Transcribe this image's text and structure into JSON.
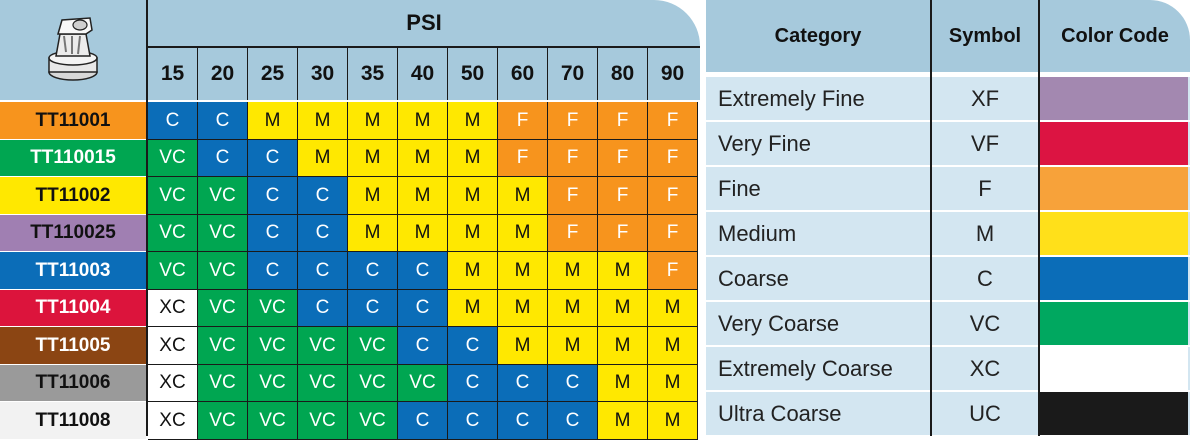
{
  "psi_title": "PSI",
  "psi_values": [
    "15",
    "20",
    "25",
    "30",
    "35",
    "40",
    "50",
    "60",
    "70",
    "80",
    "90"
  ],
  "chart_data": {
    "type": "table",
    "columns": [
      "15",
      "20",
      "25",
      "30",
      "35",
      "40",
      "50",
      "60",
      "70",
      "80",
      "90"
    ],
    "rows": [
      {
        "nozzle": "TT11001",
        "color": "#f7941d",
        "cells": [
          "C",
          "C",
          "M",
          "M",
          "M",
          "M",
          "M",
          "F",
          "F",
          "F",
          "F"
        ]
      },
      {
        "nozzle": "TT110015",
        "color": "#00a651",
        "cells": [
          "VC",
          "C",
          "C",
          "M",
          "M",
          "M",
          "M",
          "F",
          "F",
          "F",
          "F"
        ]
      },
      {
        "nozzle": "TT11002",
        "color": "#ffe800",
        "cells": [
          "VC",
          "VC",
          "C",
          "C",
          "M",
          "M",
          "M",
          "M",
          "F",
          "F",
          "F"
        ]
      },
      {
        "nozzle": "TT110025",
        "color": "#a07fb2",
        "cells": [
          "VC",
          "VC",
          "C",
          "C",
          "M",
          "M",
          "M",
          "M",
          "F",
          "F",
          "F"
        ]
      },
      {
        "nozzle": "TT11003",
        "color": "#0b6db8",
        "cells": [
          "VC",
          "VC",
          "C",
          "C",
          "C",
          "C",
          "M",
          "M",
          "M",
          "M",
          "F"
        ]
      },
      {
        "nozzle": "TT11004",
        "color": "#dc143c",
        "cells": [
          "XC",
          "VC",
          "VC",
          "C",
          "C",
          "C",
          "M",
          "M",
          "M",
          "M",
          "M"
        ]
      },
      {
        "nozzle": "TT11005",
        "color": "#8b4513",
        "cells": [
          "XC",
          "VC",
          "VC",
          "VC",
          "VC",
          "C",
          "C",
          "M",
          "M",
          "M",
          "M"
        ]
      },
      {
        "nozzle": "TT11006",
        "color": "#9a9a9a",
        "cells": [
          "XC",
          "VC",
          "VC",
          "VC",
          "VC",
          "VC",
          "C",
          "C",
          "C",
          "M",
          "M"
        ]
      },
      {
        "nozzle": "TT11008",
        "color": "#f2f2f2",
        "cells": [
          "XC",
          "VC",
          "VC",
          "VC",
          "VC",
          "C",
          "C",
          "C",
          "C",
          "M",
          "M"
        ]
      }
    ]
  },
  "legend": {
    "headers": {
      "category": "Category",
      "symbol": "Symbol",
      "color": "Color Code"
    },
    "rows": [
      {
        "category": "Extremely Fine",
        "symbol": "XF",
        "color": "#a388b0"
      },
      {
        "category": "Very Fine",
        "symbol": "VF",
        "color": "#dc1442"
      },
      {
        "category": "Fine",
        "symbol": "F",
        "color": "#f7a23a"
      },
      {
        "category": "Medium",
        "symbol": "M",
        "color": "#ffe01a"
      },
      {
        "category": "Coarse",
        "symbol": "C",
        "color": "#0b6db8"
      },
      {
        "category": "Very Coarse",
        "symbol": "VC",
        "color": "#00a860"
      },
      {
        "category": "Extremely Coarse",
        "symbol": "XC",
        "color": "#ffffff"
      },
      {
        "category": "Ultra Coarse",
        "symbol": "UC",
        "color": "#1a1a1a"
      }
    ]
  }
}
